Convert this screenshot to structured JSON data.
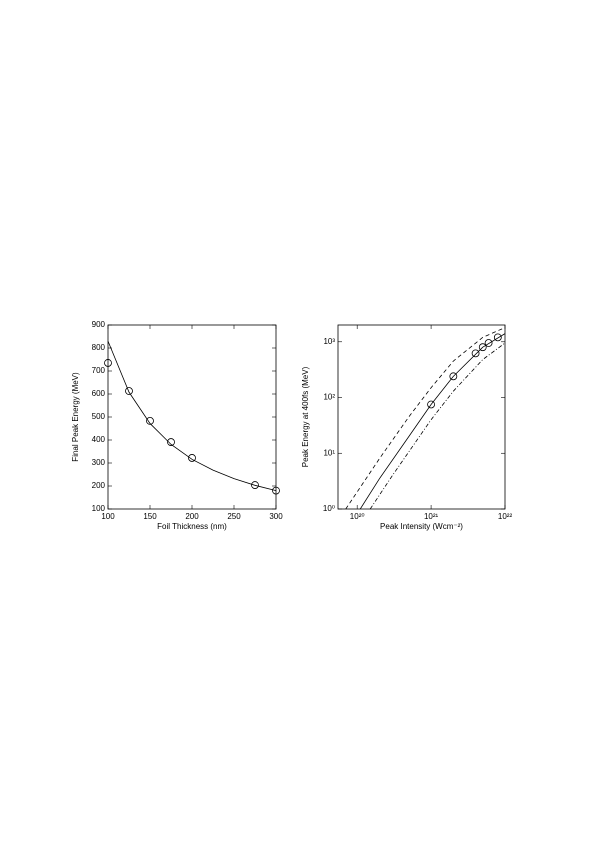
{
  "chart_data": [
    {
      "type": "line",
      "xlabel": "Foil Thickness (nm)",
      "ylabel": "Final Peak Energy (MeV)",
      "xlim": [
        100,
        300
      ],
      "ylim": [
        100,
        900
      ],
      "xticks": [
        100,
        150,
        200,
        250,
        300
      ],
      "yticks": [
        100,
        200,
        300,
        400,
        500,
        600,
        700,
        800,
        900
      ],
      "series": [
        {
          "style": "solid",
          "color": "#000000",
          "x": [
            100,
            125,
            150,
            175,
            200,
            225,
            250,
            275,
            300
          ],
          "values": [
            830,
            608,
            472,
            381,
            316,
            269,
            232,
            203,
            180
          ]
        },
        {
          "style": "markers",
          "color": "#000000",
          "x": [
            100,
            125,
            150,
            175,
            200,
            275,
            300
          ],
          "values": [
            735,
            613,
            483,
            391,
            322,
            204,
            180
          ]
        }
      ]
    },
    {
      "type": "line",
      "xlabel": "Peak Intensity (Wcm⁻²)",
      "ylabel": "Peak Energy at 400fs (MeV)",
      "xscale": "log",
      "yscale": "log",
      "xlim": [
        5.5e+19,
        1e+22
      ],
      "ylim": [
        1,
        2000
      ],
      "xticks": [
        {
          "value": 1e+20,
          "label": "10²⁰"
        },
        {
          "value": 1e+21,
          "label": "10²¹"
        },
        {
          "value": 1e+22,
          "label": "10²²"
        }
      ],
      "yticks": [
        {
          "value": 1,
          "label": "10⁰"
        },
        {
          "value": 10,
          "label": "10¹"
        },
        {
          "value": 100,
          "label": "10²"
        },
        {
          "value": 1000,
          "label": "10³"
        }
      ],
      "series": [
        {
          "style": "dashed",
          "color": "#000000",
          "x": [
            7e+19,
            2e+20,
            5e+20,
            1e+21,
            2e+21,
            5e+21,
            1e+22
          ],
          "values": [
            1,
            8,
            45,
            150,
            450,
            1200,
            1800
          ]
        },
        {
          "style": "solid",
          "color": "#000000",
          "x": [
            1.1e+20,
            2e+20,
            5e+20,
            1e+21,
            2e+21,
            5e+21,
            1e+22
          ],
          "values": [
            1,
            3.5,
            20,
            75,
            240,
            800,
            1400
          ]
        },
        {
          "style": "dashdot",
          "color": "#000000",
          "x": [
            1.5e+20,
            3e+20,
            1e+21,
            2e+21,
            5e+21,
            1e+22
          ],
          "values": [
            1,
            4,
            40,
            130,
            480,
            950
          ]
        },
        {
          "style": "markers",
          "color": "#000000",
          "x": [
            1e+21,
            2e+21,
            4e+21,
            5e+21,
            6e+21,
            8e+21
          ],
          "values": [
            75,
            240,
            620,
            800,
            950,
            1200
          ]
        }
      ]
    }
  ]
}
